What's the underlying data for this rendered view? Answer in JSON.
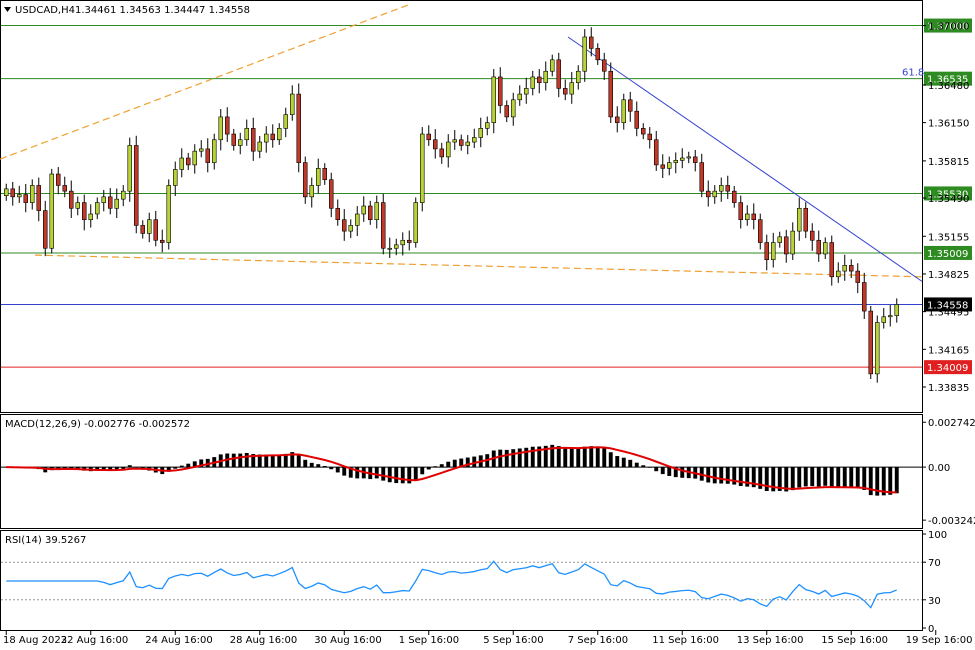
{
  "chart_header": {
    "symbol_text": "USDCAD,H4",
    "ohlc_text": "1.34461 1.34563 1.34447 1.34558"
  },
  "macd_header": {
    "text": "MACD(12,26,9) -0.002776 -0.002572"
  },
  "rsi_header": {
    "text": "RSI(14) 39.5267"
  },
  "fib_label": "61.8",
  "colors": {
    "bull": "#b8d23a",
    "bear": "#c0392b",
    "wick": "#000000",
    "hline_green": "#2e8b22",
    "hline_red": "#e02020",
    "hline_blue": "#3344cc",
    "trend_orange": "#f0a030",
    "trend_blue": "#3344cc",
    "macd_hist": "#000000",
    "macd_signal": "#e00000",
    "rsi_line": "#1e90ff"
  },
  "price_axis": {
    "ticks": [
      "1.37000",
      "1.36480",
      "1.36150",
      "1.35815",
      "1.35490",
      "1.35155",
      "1.34825",
      "1.34495",
      "1.34165",
      "1.33835"
    ],
    "range": [
      1.3366,
      1.3718
    ]
  },
  "level_labels": [
    {
      "text": "1.37000",
      "price": 1.37,
      "kind": "green"
    },
    {
      "text": "1.36535",
      "price": 1.36535,
      "kind": "green"
    },
    {
      "text": "1.35530",
      "price": 1.3553,
      "kind": "green"
    },
    {
      "text": "1.35009",
      "price": 1.35009,
      "kind": "green"
    },
    {
      "text": "1.34558",
      "price": 1.34558,
      "kind": "current"
    },
    {
      "text": "1.34009",
      "price": 1.34009,
      "kind": "red"
    }
  ],
  "macd_axis": {
    "ticks": [
      "0.002742",
      "0.00",
      "-0.003242"
    ],
    "range": [
      -0.0036,
      0.003
    ]
  },
  "rsi_axis": {
    "ticks": [
      "100",
      "70",
      "30",
      "0"
    ],
    "levels": [
      70,
      30
    ],
    "range": [
      0,
      100
    ]
  },
  "time_axis": {
    "labels": [
      "18 Aug 2023",
      "22 Aug 16:00",
      "24 Aug 16:00",
      "28 Aug 16:00",
      "30 Aug 16:00",
      "1 Sep 16:00",
      "5 Sep 16:00",
      "7 Sep 16:00",
      "11 Sep 16:00",
      "13 Sep 16:00",
      "15 Sep 16:00",
      "19 Sep 16:00"
    ],
    "label_bar_index": [
      0,
      13,
      26,
      39,
      52,
      65,
      78,
      91,
      104,
      117,
      130,
      143
    ]
  },
  "chart_data": {
    "type": "candlestick",
    "title": "USDCAD,H4",
    "bars_closes": [
      1.3557,
      1.355,
      1.3552,
      1.3545,
      1.356,
      1.3538,
      1.3505,
      1.357,
      1.356,
      1.3555,
      1.354,
      1.3545,
      1.353,
      1.3535,
      1.3545,
      1.355,
      1.354,
      1.3548,
      1.3555,
      1.3595,
      1.3525,
      1.3518,
      1.353,
      1.3512,
      1.351,
      1.356,
      1.3574,
      1.3584,
      1.3578,
      1.359,
      1.3592,
      1.358,
      1.36,
      1.362,
      1.3605,
      1.3595,
      1.36,
      1.361,
      1.359,
      1.3598,
      1.3605,
      1.36,
      1.361,
      1.3622,
      1.364,
      1.358,
      1.355,
      1.356,
      1.3575,
      1.3565,
      1.354,
      1.353,
      1.352,
      1.3525,
      1.3535,
      1.3542,
      1.353,
      1.3545,
      1.3505,
      1.3505,
      1.3508,
      1.3512,
      1.351,
      1.3545,
      1.3605,
      1.36,
      1.3592,
      1.3585,
      1.3598,
      1.36,
      1.3595,
      1.3598,
      1.3602,
      1.361,
      1.3615,
      1.3655,
      1.363,
      1.362,
      1.3635,
      1.364,
      1.3645,
      1.3655,
      1.365,
      1.366,
      1.367,
      1.3645,
      1.364,
      1.365,
      1.366,
      1.369,
      1.368,
      1.367,
      1.366,
      1.362,
      1.3615,
      1.3635,
      1.3625,
      1.361,
      1.3605,
      1.36,
      1.3578,
      1.3575,
      1.358,
      1.3582,
      1.3584,
      1.3585,
      1.358,
      1.3555,
      1.355,
      1.3555,
      1.356,
      1.3555,
      1.3545,
      1.353,
      1.3535,
      1.353,
      1.351,
      1.3495,
      1.351,
      1.3515,
      1.35,
      1.352,
      1.354,
      1.352,
      1.3512,
      1.35,
      1.351,
      1.348,
      1.3485,
      1.349,
      1.3485,
      1.3475,
      1.345,
      1.3395,
      1.344,
      1.3445,
      1.3446,
      1.34558
    ],
    "x_labels": [
      "18 Aug 2023",
      "22 Aug 16:00",
      "24 Aug 16:00",
      "28 Aug 16:00",
      "30 Aug 16:00",
      "1 Sep 16:00",
      "5 Sep 16:00",
      "7 Sep 16:00",
      "11 Sep 16:00",
      "13 Sep 16:00",
      "15 Sep 16:00",
      "19 Sep 16:00"
    ],
    "ylim": [
      1.3366,
      1.3718
    ],
    "horizontal_levels": [
      1.37,
      1.36535,
      1.3553,
      1.35009,
      1.34558,
      1.34009
    ],
    "macd": {
      "name": "MACD(12,26,9)",
      "value": -0.002776,
      "signal": -0.002572
    },
    "rsi": {
      "name": "RSI(14)",
      "value": 39.5267,
      "levels": [
        70,
        30
      ]
    }
  }
}
